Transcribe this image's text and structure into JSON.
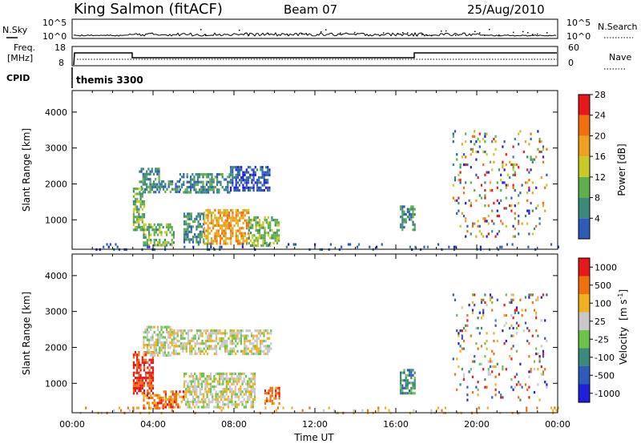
{
  "header": {
    "title": "King Salmon (fitACF)",
    "beam": "Beam 07",
    "date": "25/Aug/2010"
  },
  "top_panels": {
    "nsky_label": "N.Sky",
    "nsky_ticks": [
      "10^5",
      "10^0"
    ],
    "nsearch_label": "N.Search",
    "nsearch_ticks": [
      "10^5",
      "10^0"
    ],
    "freq_label_line1": "Freq.",
    "freq_label_line2": "[MHz]",
    "freq_ticks": [
      "18",
      "8"
    ],
    "nave_label": "Nave",
    "nave_ticks": [
      "60",
      "0"
    ],
    "cpid_label": "CPID",
    "cpid_value": "themis 3300"
  },
  "chart_data": [
    {
      "type": "heatmap",
      "panel": "power",
      "ylabel": "Slant Range [km]",
      "yticks": [
        1000,
        2000,
        3000,
        4000
      ],
      "ylim": [
        180,
        4600
      ],
      "xlim_hours": [
        0,
        24
      ],
      "colorbar": {
        "label": "Power [dB]",
        "ticks": [
          "4",
          "8",
          "12",
          "16",
          "20",
          "24",
          "28"
        ],
        "colors": [
          "#1e1edc",
          "#2f5bb8",
          "#3c8a7a",
          "#5fb04a",
          "#c8c828",
          "#f0a020",
          "#f07010",
          "#e81818"
        ]
      },
      "regions": [
        {
          "t0": 3.3,
          "t1": 4.3,
          "r0": 1750,
          "r1": 2450,
          "level": 2
        },
        {
          "t0": 4.3,
          "t1": 5.3,
          "r0": 1800,
          "r1": 2100,
          "level": 2
        },
        {
          "t0": 5.3,
          "t1": 7.8,
          "r0": 1750,
          "r1": 2300,
          "level": 2
        },
        {
          "t0": 7.8,
          "t1": 9.8,
          "r0": 1800,
          "r1": 2500,
          "level": 1
        },
        {
          "t0": 3.0,
          "t1": 3.6,
          "r0": 700,
          "r1": 1900,
          "level": 3
        },
        {
          "t0": 3.5,
          "t1": 5.0,
          "r0": 300,
          "r1": 900,
          "level": 3
        },
        {
          "t0": 5.5,
          "t1": 6.5,
          "r0": 400,
          "r1": 1200,
          "level": 2
        },
        {
          "t0": 6.5,
          "t1": 8.7,
          "r0": 300,
          "r1": 1300,
          "level": 5
        },
        {
          "t0": 8.7,
          "t1": 10.2,
          "r0": 300,
          "r1": 1100,
          "level": 3
        },
        {
          "t0": 16.2,
          "t1": 16.9,
          "r0": 750,
          "r1": 1400,
          "level": 2
        },
        {
          "t0": 0.2,
          "t1": 24.0,
          "r0": 180,
          "r1": 350,
          "level": 1
        },
        {
          "t0": 18.8,
          "t1": 23.5,
          "r0": 500,
          "r1": 3500,
          "level": 0
        }
      ]
    },
    {
      "type": "heatmap",
      "panel": "velocity",
      "ylabel": "Slant Range [km]",
      "xlabel": "Time UT",
      "yticks": [
        1000,
        2000,
        3000,
        4000
      ],
      "ylim": [
        180,
        4600
      ],
      "xticks": [
        "00:00",
        "04:00",
        "08:00",
        "12:00",
        "16:00",
        "20:00",
        "00:00"
      ],
      "xlim_hours": [
        0,
        24
      ],
      "colorbar": {
        "label": "Velocity",
        "unit_prefix": "m s",
        "unit_exp": "-1",
        "ticks": [
          "1000",
          "500",
          "100",
          "25",
          "-25",
          "-100",
          "-500",
          "-1000"
        ],
        "colors": [
          "#1e1edc",
          "#2f5bb8",
          "#3c8a7a",
          "#6cc24a",
          "#c8c8c8",
          "#f0b020",
          "#f07010",
          "#e81818"
        ]
      },
      "regions": [
        {
          "t0": 3.0,
          "t1": 4.0,
          "r0": 700,
          "r1": 1900,
          "level": 7
        },
        {
          "t0": 3.5,
          "t1": 4.5,
          "r0": 300,
          "r1": 700,
          "level": 6
        },
        {
          "t0": 3.5,
          "t1": 5.0,
          "r0": 1750,
          "r1": 2600,
          "level": 4
        },
        {
          "t0": 5.0,
          "t1": 9.8,
          "r0": 1800,
          "r1": 2500,
          "level": 4
        },
        {
          "t0": 5.5,
          "t1": 9.0,
          "r0": 300,
          "r1": 1300,
          "level": 4
        },
        {
          "t0": 4.5,
          "t1": 5.5,
          "r0": 350,
          "r1": 800,
          "level": 6
        },
        {
          "t0": 9.5,
          "t1": 10.2,
          "r0": 400,
          "r1": 900,
          "level": 6
        },
        {
          "t0": 16.2,
          "t1": 16.9,
          "r0": 700,
          "r1": 1400,
          "level": 2
        },
        {
          "t0": 0.2,
          "t1": 24.0,
          "r0": 180,
          "r1": 350,
          "level": 5
        },
        {
          "t0": 18.8,
          "t1": 23.5,
          "r0": 500,
          "r1": 3500,
          "level": 6
        }
      ]
    }
  ]
}
